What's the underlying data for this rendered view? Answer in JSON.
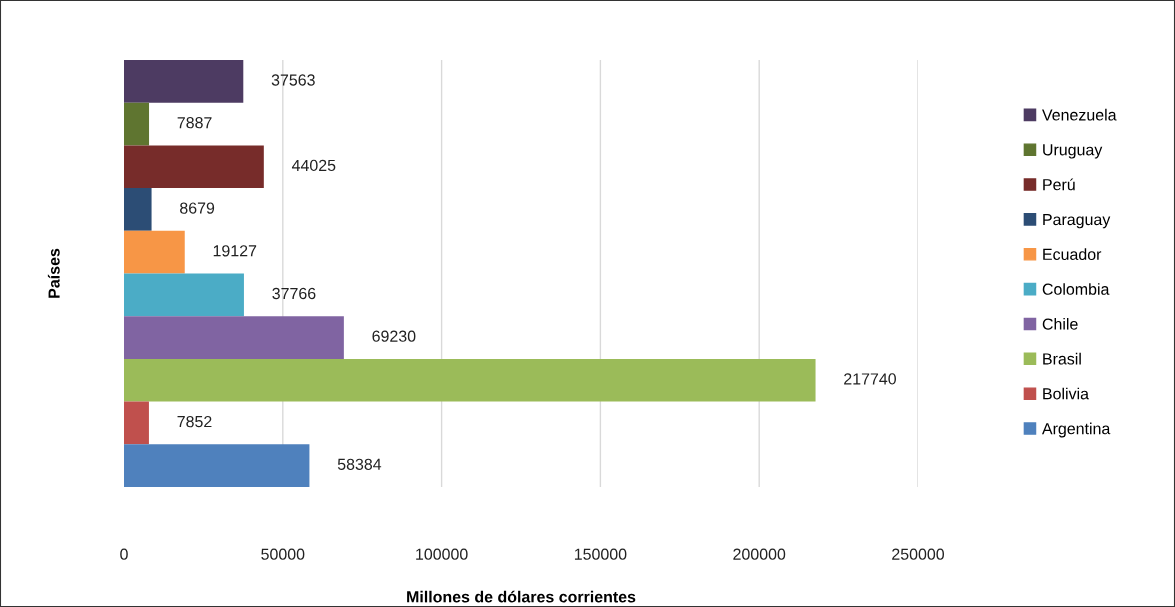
{
  "chart_data": {
    "type": "bar",
    "orientation": "horizontal",
    "xlabel": "Millones de dólares corrientes",
    "ylabel": "Países",
    "categories": [
      null
    ],
    "series": [
      {
        "name": "Venezuela",
        "color": "#4d3b62",
        "values": [
          37563
        ]
      },
      {
        "name": "Uruguay",
        "color": "#5f7530",
        "values": [
          7887
        ]
      },
      {
        "name": "Perú",
        "color": "#772c2a",
        "values": [
          44025
        ]
      },
      {
        "name": "Paraguay",
        "color": "#2c4d75",
        "values": [
          8679
        ]
      },
      {
        "name": "Ecuador",
        "color": "#f79646",
        "values": [
          19127
        ]
      },
      {
        "name": "Colombia",
        "color": "#4bacc6",
        "values": [
          37766
        ]
      },
      {
        "name": "Chile",
        "color": "#8064a2",
        "values": [
          69230
        ]
      },
      {
        "name": "Brasil",
        "color": "#9bbb59",
        "values": [
          217740
        ]
      },
      {
        "name": "Bolivia",
        "color": "#c0504d",
        "values": [
          7852
        ]
      },
      {
        "name": "Argentina",
        "color": "#4f81bd",
        "values": [
          58384
        ]
      }
    ],
    "xlim": [
      0,
      250000
    ],
    "xticks": [
      0,
      50000,
      100000,
      150000,
      200000,
      250000
    ],
    "grid": "x",
    "legend": "right",
    "data_labels": true
  }
}
